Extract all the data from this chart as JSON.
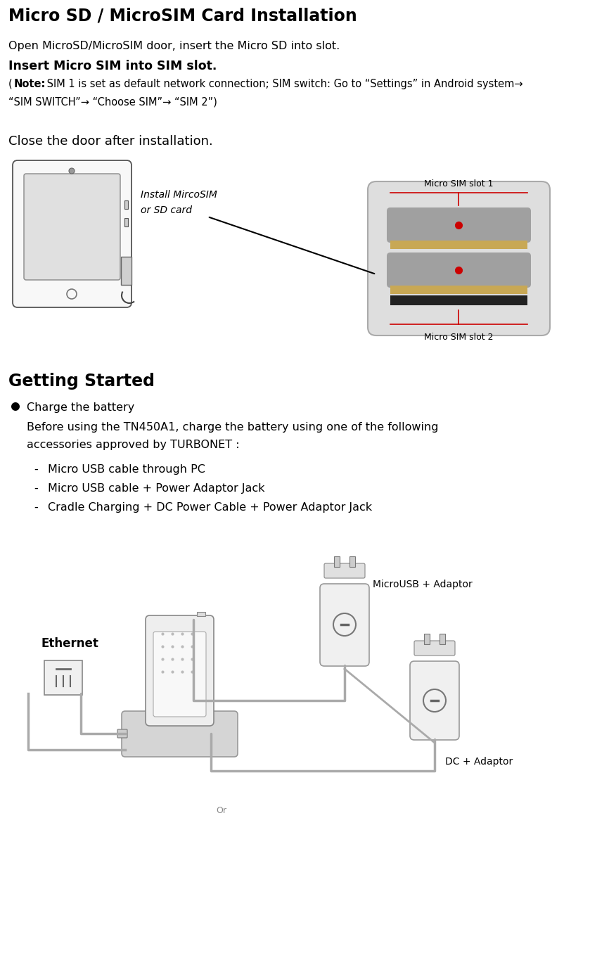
{
  "title": "Micro SD / MicroSIM Card Installation",
  "section2_title": "Getting Started",
  "line1": "Open MicroSD/MicroSIM door, insert the Micro SD into slot.",
  "line2": "Insert Micro SIM into SIM slot.",
  "note_bold": "Note:",
  "note_text": " SIM 1 is set as default network connection; SIM switch: Go to “Settings” in Android system→",
  "note_line2": "“SIM SWITCH”→ “Choose SIM”→ “SIM 2”)",
  "note_prefix": "(",
  "close_door": "Close the door after installation.",
  "sim_label1": "Install MircoSIM",
  "sim_label2": "or SD card",
  "sim_slot1": "Micro SIM slot 1",
  "sim_slot2": "Micro SIM slot 2",
  "bullet_header": "Charge the battery",
  "bullet_body1": "Before using the TN450A1, charge the battery using one of the following",
  "bullet_body2": "accessories approved by TURBONET :",
  "dash1": "Micro USB cable through PC",
  "dash2": "Micro USB cable + Power Adaptor Jack",
  "dash3": "Cradle Charging + DC Power Cable + Power Adaptor Jack",
  "eth_label": "Ethernet",
  "usb_label": "MicroUSB + Adaptor",
  "dc_label": "DC + Adaptor",
  "bg_color": "#ffffff",
  "text_color": "#000000",
  "red_color": "#cc0000",
  "slot_gray": "#a0a0a0",
  "slot_gold": "#c8a855",
  "slot_black": "#222222",
  "title_fontsize": 17,
  "body_fontsize": 11.5,
  "note_fontsize": 10.5,
  "section_fontsize": 17,
  "fig_width": 8.39,
  "fig_height": 13.72
}
